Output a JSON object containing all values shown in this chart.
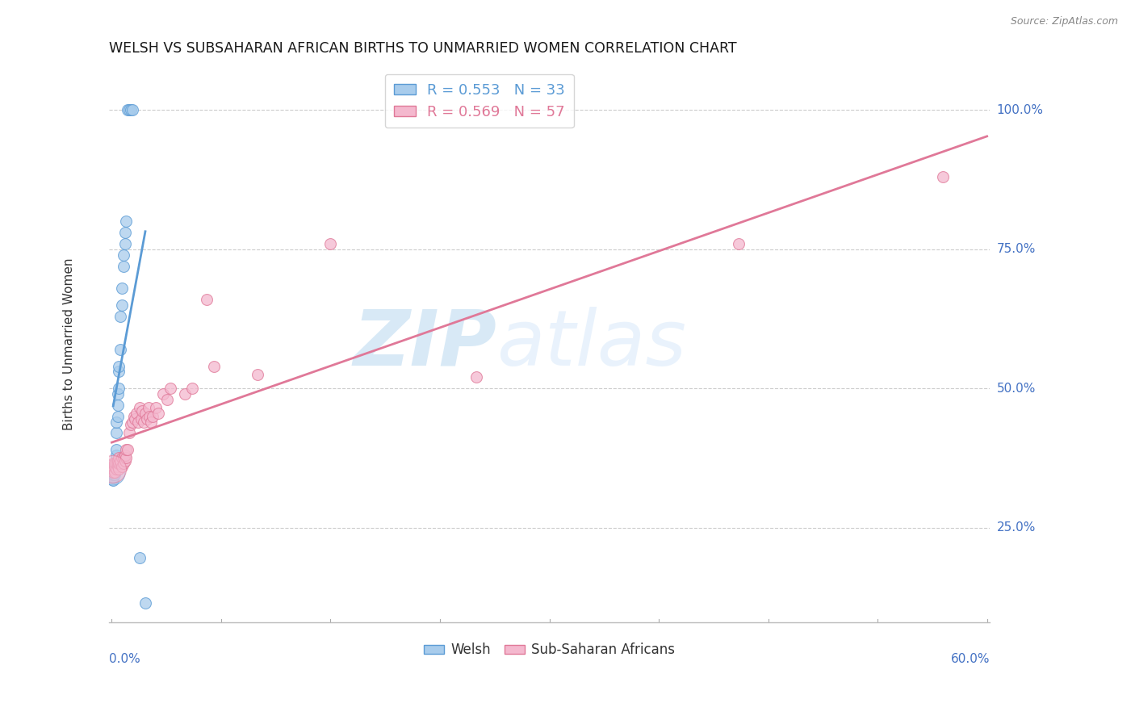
{
  "title": "WELSH VS SUBSAHARAN AFRICAN BIRTHS TO UNMARRIED WOMEN CORRELATION CHART",
  "source": "Source: ZipAtlas.com",
  "ylabel": "Births to Unmarried Women",
  "xlim": [
    -0.002,
    0.602
  ],
  "ylim": [
    0.08,
    1.08
  ],
  "ytick_vals": [
    0.25,
    0.5,
    0.75,
    1.0
  ],
  "ytick_labels": [
    "25.0%",
    "50.0%",
    "75.0%",
    "100.0%"
  ],
  "watermark_zip": "ZIP",
  "watermark_atlas": "atlas",
  "welsh_fill": "#a8ccec",
  "welsh_edge": "#5b9bd5",
  "ssa_fill": "#f4b8ce",
  "ssa_edge": "#e07898",
  "background_color": "#ffffff",
  "grid_color": "#cccccc",
  "axis_color": "#4472c4",
  "title_color": "#1a1a1a",
  "source_color": "#888888",
  "welsh_R": "0.553",
  "welsh_N": "33",
  "subsaharan_R": "0.569",
  "subsaharan_N": "57",
  "welsh_x": [
    0.001,
    0.001,
    0.001,
    0.001,
    0.002,
    0.002,
    0.002,
    0.002,
    0.003,
    0.003,
    0.003,
    0.003,
    0.004,
    0.004,
    0.004,
    0.005,
    0.005,
    0.005,
    0.006,
    0.006,
    0.007,
    0.007,
    0.008,
    0.008,
    0.009,
    0.009,
    0.01,
    0.011,
    0.012,
    0.013,
    0.014,
    0.019,
    0.023
  ],
  "welsh_y": [
    0.335,
    0.34,
    0.345,
    0.35,
    0.345,
    0.35,
    0.355,
    0.36,
    0.38,
    0.39,
    0.42,
    0.44,
    0.45,
    0.47,
    0.49,
    0.5,
    0.53,
    0.54,
    0.57,
    0.63,
    0.65,
    0.68,
    0.72,
    0.74,
    0.76,
    0.78,
    0.8,
    1.0,
    1.0,
    1.0,
    1.0,
    0.195,
    0.115
  ],
  "ssa_x": [
    0.001,
    0.001,
    0.001,
    0.001,
    0.002,
    0.002,
    0.002,
    0.003,
    0.003,
    0.004,
    0.004,
    0.004,
    0.005,
    0.005,
    0.005,
    0.006,
    0.006,
    0.007,
    0.007,
    0.008,
    0.008,
    0.009,
    0.009,
    0.01,
    0.01,
    0.011,
    0.012,
    0.013,
    0.014,
    0.015,
    0.016,
    0.017,
    0.018,
    0.019,
    0.02,
    0.021,
    0.022,
    0.023,
    0.024,
    0.025,
    0.026,
    0.027,
    0.028,
    0.03,
    0.032,
    0.035,
    0.038,
    0.04,
    0.05,
    0.055,
    0.065,
    0.07,
    0.1,
    0.15,
    0.25,
    0.43,
    0.57
  ],
  "ssa_y": [
    0.35,
    0.355,
    0.36,
    0.365,
    0.35,
    0.36,
    0.365,
    0.355,
    0.365,
    0.36,
    0.365,
    0.37,
    0.355,
    0.365,
    0.375,
    0.365,
    0.37,
    0.36,
    0.375,
    0.365,
    0.375,
    0.37,
    0.38,
    0.375,
    0.39,
    0.39,
    0.42,
    0.435,
    0.44,
    0.45,
    0.445,
    0.455,
    0.44,
    0.465,
    0.445,
    0.46,
    0.44,
    0.455,
    0.445,
    0.465,
    0.45,
    0.44,
    0.45,
    0.465,
    0.455,
    0.49,
    0.48,
    0.5,
    0.49,
    0.5,
    0.66,
    0.54,
    0.525,
    0.76,
    0.52,
    0.76,
    0.88
  ]
}
